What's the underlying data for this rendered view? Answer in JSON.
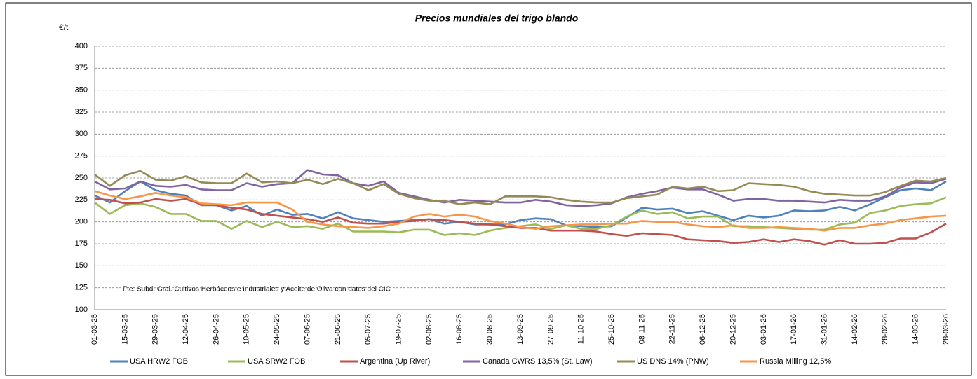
{
  "chart_data": {
    "type": "line",
    "title": "Precios mundiales del trigo blando",
    "y_label": "€/t",
    "annotation": "Fte: Subd. Gral. Cultivos Herbáceos e Industriales y Aceite de Oliva con datos del  CIC",
    "categories": [
      "01-03-25",
      null,
      "15-03-25",
      null,
      "29-03-25",
      null,
      "12-04-25",
      null,
      "26-04-25",
      null,
      "10-05-25",
      null,
      "24-05-25",
      null,
      "07-06-25",
      null,
      "21-06-25",
      null,
      "05-07-25",
      null,
      "19-07-25",
      null,
      "02-08-25",
      null,
      "16-08-25",
      null,
      "30-08-25",
      null,
      "13-09-25",
      null,
      "27-09-25",
      null,
      "11-10-25",
      null,
      "25-10-25",
      null,
      "08-11-25",
      null,
      "22-11-25",
      null,
      "06-12-25",
      null,
      "20-12-25",
      null,
      "03-01-26",
      null,
      "17-01-26",
      null,
      "31-01-26",
      null,
      "14-02-26",
      null,
      "28-02-26",
      null,
      "14-03-26",
      null,
      "28-03-26"
    ],
    "ylim": [
      100,
      400
    ],
    "yticks": [
      100,
      125,
      150,
      175,
      200,
      225,
      250,
      275,
      300,
      325,
      350,
      375,
      400
    ],
    "grid": true,
    "series": [
      {
        "name": "USA HRW2 FOB",
        "color": "#4F81BD",
        "values": [
          230,
          222,
          235,
          246,
          236,
          232,
          230,
          219,
          219,
          213,
          218,
          207,
          214,
          208,
          209,
          204,
          211,
          204,
          202,
          200,
          201,
          202,
          203,
          198,
          200,
          197,
          197,
          197,
          202,
          204,
          203,
          196,
          195,
          194,
          195,
          205,
          216,
          214,
          215,
          210,
          212,
          207,
          202,
          207,
          205,
          207,
          213,
          212,
          213,
          217,
          213,
          220,
          228,
          236,
          238,
          236,
          246
        ]
      },
      {
        "name": "USA SRW2 FOB",
        "color": "#9BBB59",
        "values": [
          222,
          209,
          219,
          221,
          217,
          209,
          209,
          201,
          201,
          192,
          201,
          194,
          200,
          194,
          195,
          192,
          198,
          189,
          189,
          189,
          188,
          191,
          191,
          185,
          187,
          185,
          190,
          193,
          195,
          197,
          192,
          196,
          192,
          192,
          196,
          206,
          213,
          209,
          211,
          204,
          206,
          206,
          195,
          195,
          194,
          193,
          192,
          191,
          191,
          197,
          199,
          210,
          213,
          218,
          220,
          221,
          228
        ]
      },
      {
        "name": "Argentina (Up River)",
        "color": "#C0504D",
        "values": [
          226,
          225,
          221,
          222,
          226,
          224,
          226,
          220,
          219,
          216,
          214,
          209,
          207,
          205,
          203,
          200,
          205,
          199,
          198,
          198,
          200,
          201,
          203,
          202,
          200,
          198,
          197,
          195,
          193,
          193,
          190,
          190,
          190,
          189,
          186,
          184,
          187,
          186,
          185,
          180,
          179,
          178,
          176,
          177,
          180,
          177,
          180,
          178,
          174,
          179,
          175,
          175,
          176,
          181,
          181,
          188,
          198
        ]
      },
      {
        "name": "Canada CWRS 13,5% (St. Law)",
        "color": "#8064A2",
        "values": [
          246,
          237,
          238,
          246,
          241,
          240,
          242,
          237,
          236,
          236,
          244,
          240,
          243,
          244,
          259,
          254,
          253,
          244,
          241,
          246,
          233,
          229,
          225,
          222,
          225,
          224,
          223,
          222,
          222,
          225,
          223,
          219,
          218,
          219,
          221,
          228,
          232,
          235,
          239,
          237,
          237,
          231,
          224,
          226,
          226,
          224,
          224,
          223,
          222,
          225,
          224,
          224,
          229,
          239,
          245,
          244,
          249
        ]
      },
      {
        "name": "US DNS 14% (PNW)",
        "color": "#948A54",
        "values": [
          254,
          241,
          253,
          258,
          248,
          247,
          252,
          245,
          244,
          244,
          255,
          245,
          246,
          244,
          248,
          243,
          249,
          244,
          236,
          243,
          232,
          227,
          224,
          224,
          220,
          222,
          220,
          229,
          229,
          229,
          228,
          225,
          223,
          222,
          222,
          227,
          229,
          231,
          240,
          238,
          240,
          235,
          236,
          244,
          243,
          242,
          240,
          235,
          232,
          231,
          230,
          230,
          234,
          241,
          247,
          246,
          250
        ]
      },
      {
        "name": "Russia Milling 12,5%",
        "color": "#F79646",
        "values": [
          235,
          230,
          226,
          229,
          233,
          230,
          228,
          221,
          220,
          219,
          222,
          222,
          222,
          214,
          200,
          197,
          195,
          194,
          193,
          195,
          198,
          206,
          209,
          206,
          208,
          206,
          201,
          198,
          194,
          192,
          195,
          196,
          197,
          197,
          198,
          198,
          201,
          200,
          200,
          197,
          195,
          194,
          196,
          193,
          193,
          194,
          193,
          192,
          190,
          193,
          193,
          196,
          198,
          202,
          204,
          206,
          207
        ]
      }
    ]
  }
}
